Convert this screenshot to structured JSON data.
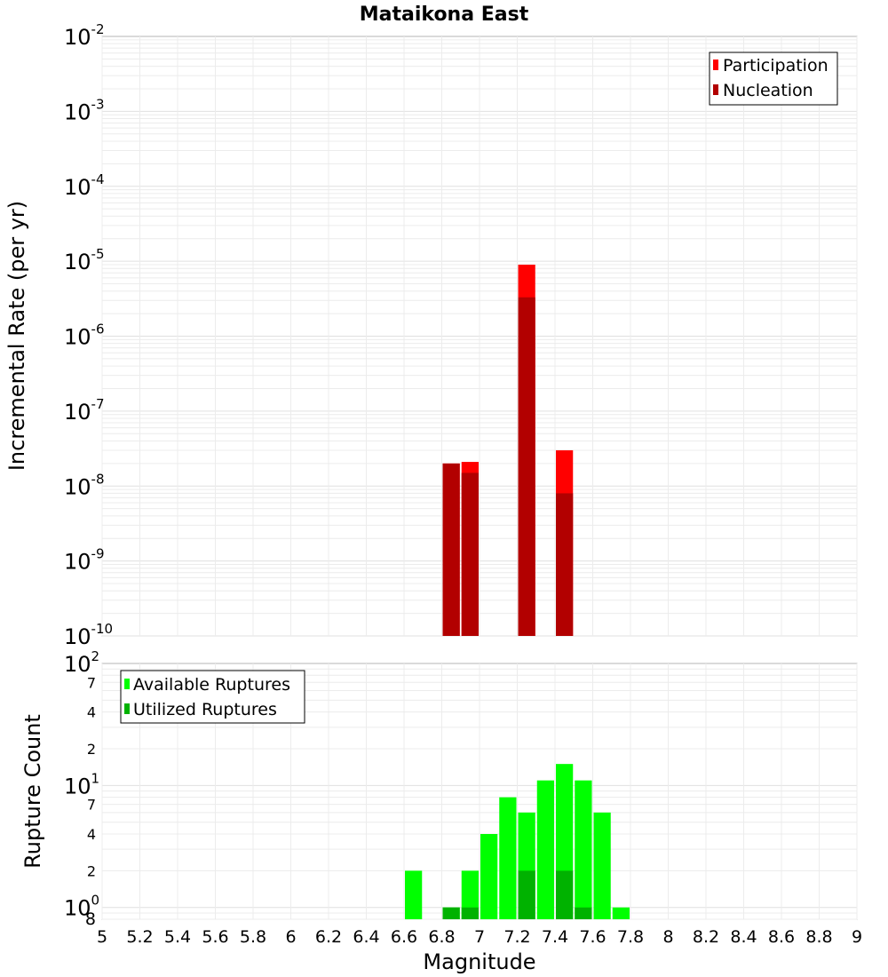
{
  "chart_data": [
    {
      "type": "bar",
      "title": "Mataikona East",
      "xlabel": "",
      "ylabel": "Incremental Rate (per yr)",
      "y_scale": "log",
      "xlim": [
        5,
        9
      ],
      "ylim": [
        1e-10,
        0.01
      ],
      "grid": true,
      "y_ticks": [
        {
          "base": "10",
          "exp": "-10",
          "value": 1e-10
        },
        {
          "base": "10",
          "exp": "-9",
          "value": 1e-09
        },
        {
          "base": "10",
          "exp": "-8",
          "value": 1e-08
        },
        {
          "base": "10",
          "exp": "-7",
          "value": 1e-07
        },
        {
          "base": "10",
          "exp": "-6",
          "value": 1e-06
        },
        {
          "base": "10",
          "exp": "-5",
          "value": 1e-05
        },
        {
          "base": "10",
          "exp": "-4",
          "value": 0.0001
        },
        {
          "base": "10",
          "exp": "-3",
          "value": 0.001
        },
        {
          "base": "10",
          "exp": "-2",
          "value": 0.01
        }
      ],
      "legend": {
        "position": "top-right",
        "entries": [
          {
            "label": "Participation",
            "color": "#ff0000"
          },
          {
            "label": "Nucleation",
            "color": "#b20000"
          }
        ]
      },
      "series": [
        {
          "name": "Participation",
          "color": "#ff0000",
          "points": [
            {
              "x": 6.85,
              "y": 2e-08
            },
            {
              "x": 6.95,
              "y": 2.1e-08
            },
            {
              "x": 7.25,
              "y": 9e-06
            },
            {
              "x": 7.45,
              "y": 3e-08
            }
          ]
        },
        {
          "name": "Nucleation",
          "color": "#b20000",
          "points": [
            {
              "x": 6.85,
              "y": 2e-08
            },
            {
              "x": 6.95,
              "y": 1.5e-08
            },
            {
              "x": 7.25,
              "y": 3.3e-06
            },
            {
              "x": 7.45,
              "y": 8e-09
            }
          ]
        }
      ]
    },
    {
      "type": "bar",
      "title": "",
      "xlabel": "Magnitude",
      "ylabel": "Rupture Count",
      "y_scale": "log",
      "xlim": [
        5,
        9
      ],
      "ylim": [
        0.8,
        100
      ],
      "grid": true,
      "x_ticks": [
        "5",
        "5.2",
        "5.4",
        "5.6",
        "5.8",
        "6",
        "6.2",
        "6.4",
        "6.6",
        "6.8",
        "7",
        "7.2",
        "7.4",
        "7.6",
        "7.8",
        "8",
        "8.2",
        "8.4",
        "8.6",
        "8.8",
        "9"
      ],
      "y_major_ticks": [
        {
          "base": "10",
          "exp": "0",
          "value": 1
        },
        {
          "base": "10",
          "exp": "1",
          "value": 10
        },
        {
          "base": "10",
          "exp": "2",
          "value": 100
        }
      ],
      "y_minor_ticks": [
        {
          "label": "8",
          "value": 0.8
        },
        {
          "label": "2",
          "value": 2
        },
        {
          "label": "4",
          "value": 4
        },
        {
          "label": "7",
          "value": 7
        },
        {
          "label": "2",
          "value": 20
        },
        {
          "label": "4",
          "value": 40
        },
        {
          "label": "7",
          "value": 70
        }
      ],
      "legend": {
        "position": "top-left",
        "entries": [
          {
            "label": "Available Ruptures",
            "color": "#00ff00"
          },
          {
            "label": "Utilized Ruptures",
            "color": "#00b200"
          }
        ]
      },
      "series": [
        {
          "name": "Available Ruptures",
          "color": "#00ff00",
          "points": [
            {
              "x": 6.65,
              "y": 2
            },
            {
              "x": 6.85,
              "y": 1
            },
            {
              "x": 6.95,
              "y": 2
            },
            {
              "x": 7.05,
              "y": 4
            },
            {
              "x": 7.15,
              "y": 8
            },
            {
              "x": 7.25,
              "y": 6
            },
            {
              "x": 7.35,
              "y": 11
            },
            {
              "x": 7.45,
              "y": 15
            },
            {
              "x": 7.55,
              "y": 11
            },
            {
              "x": 7.65,
              "y": 6
            },
            {
              "x": 7.75,
              "y": 1
            }
          ]
        },
        {
          "name": "Utilized Ruptures",
          "color": "#00b200",
          "points": [
            {
              "x": 6.85,
              "y": 1
            },
            {
              "x": 6.95,
              "y": 1
            },
            {
              "x": 7.25,
              "y": 2
            },
            {
              "x": 7.45,
              "y": 2
            },
            {
              "x": 7.55,
              "y": 1
            }
          ]
        }
      ]
    }
  ]
}
